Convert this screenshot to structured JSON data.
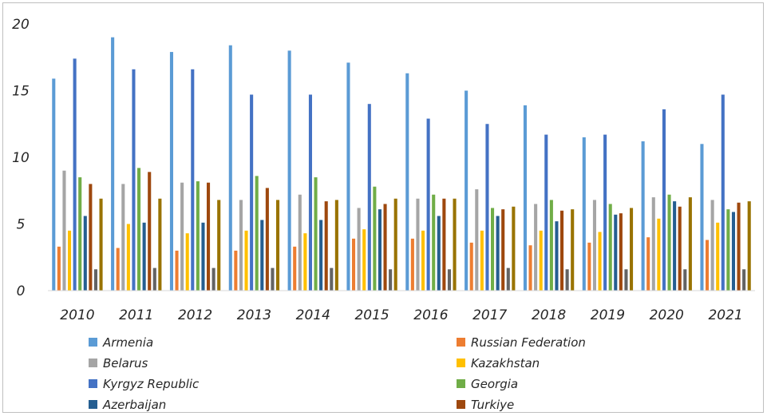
{
  "chart_data": {
    "type": "bar",
    "title": "",
    "xlabel": "",
    "ylabel": "",
    "ylim": [
      0,
      20
    ],
    "yticks": [
      0,
      5,
      10,
      15,
      20
    ],
    "grid": false,
    "legend_position": "bottom",
    "categories": [
      "2010",
      "2011",
      "2012",
      "2013",
      "2014",
      "2015",
      "2016",
      "2017",
      "2018",
      "2019",
      "2020",
      "2021"
    ],
    "series": [
      {
        "name": "Armenia",
        "color": "#5B9BD5",
        "values": [
          15.9,
          19.0,
          17.9,
          18.4,
          18.0,
          17.1,
          16.3,
          15.0,
          13.9,
          11.5,
          11.2,
          11.0
        ]
      },
      {
        "name": "Russian Federation",
        "color": "#ED7D31",
        "values": [
          3.3,
          3.2,
          3.0,
          3.0,
          3.3,
          3.9,
          3.9,
          3.6,
          3.4,
          3.6,
          4.0,
          3.8
        ]
      },
      {
        "name": "Belarus",
        "color": "#A5A5A5",
        "values": [
          9.0,
          8.0,
          8.1,
          6.8,
          7.2,
          6.2,
          6.9,
          7.6,
          6.5,
          6.8,
          7.0,
          6.8
        ]
      },
      {
        "name": "Kazakhstan",
        "color": "#FFC000",
        "values": [
          4.5,
          5.0,
          4.3,
          4.5,
          4.3,
          4.6,
          4.5,
          4.5,
          4.5,
          4.4,
          5.4,
          5.1
        ]
      },
      {
        "name": "Kyrgyz Republic",
        "color": "#4472C4",
        "values": [
          17.4,
          16.6,
          16.6,
          14.7,
          14.7,
          14.0,
          12.9,
          12.5,
          11.7,
          11.7,
          13.6,
          14.7
        ]
      },
      {
        "name": "Georgia",
        "color": "#70AD47",
        "values": [
          8.5,
          9.2,
          8.2,
          8.6,
          8.5,
          7.8,
          7.2,
          6.2,
          6.8,
          6.5,
          7.2,
          6.1
        ]
      },
      {
        "name": "Azerbaijan",
        "color": "#255E91",
        "values": [
          5.6,
          5.1,
          5.1,
          5.3,
          5.3,
          6.1,
          5.6,
          5.6,
          5.2,
          5.7,
          6.7,
          5.9
        ]
      },
      {
        "name": "Turkiye",
        "color": "#9E480E",
        "values": [
          8.0,
          8.9,
          8.1,
          7.7,
          6.7,
          6.5,
          6.9,
          6.1,
          6.0,
          5.8,
          6.3,
          6.6
        ]
      },
      {
        "name": "",
        "color": "#636363",
        "values": [
          1.6,
          1.7,
          1.7,
          1.7,
          1.7,
          1.6,
          1.6,
          1.7,
          1.6,
          1.6,
          1.6,
          1.6
        ]
      },
      {
        "name": "",
        "color": "#997300",
        "values": [
          6.9,
          6.9,
          6.8,
          6.8,
          6.8,
          6.9,
          6.9,
          6.3,
          6.1,
          6.2,
          7.0,
          6.7
        ]
      }
    ]
  }
}
